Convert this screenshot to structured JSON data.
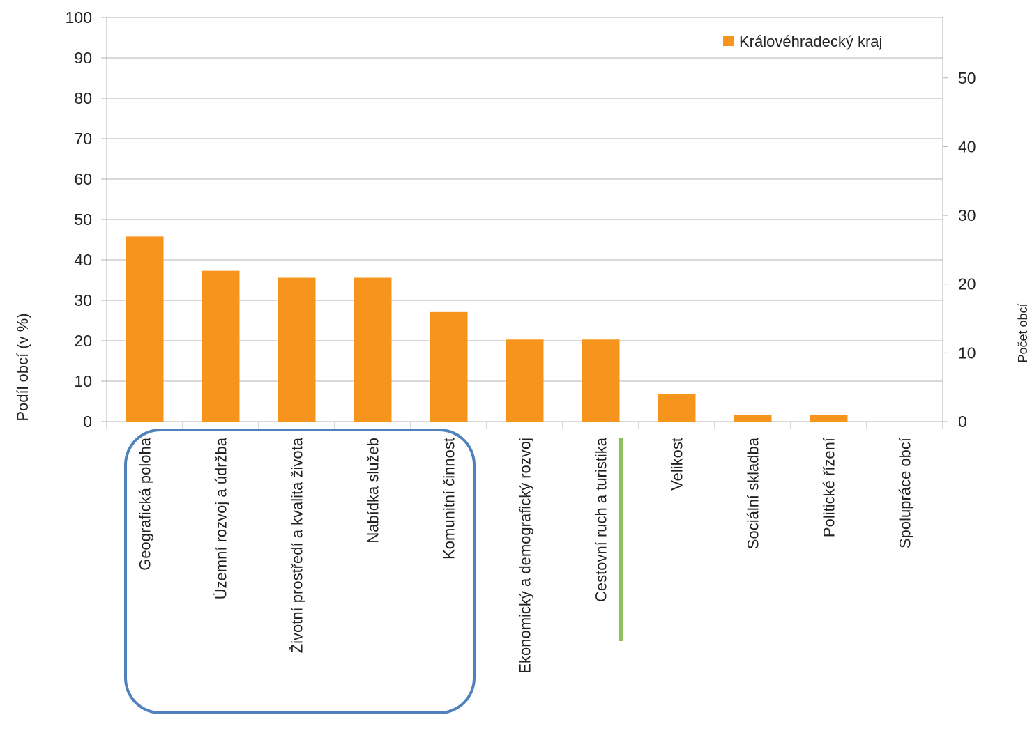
{
  "chart_data": {
    "type": "bar",
    "title": "",
    "xlabel": "",
    "ylabel": "Podíl obcí (v %)",
    "y2label": "Počet obcí",
    "ylim": [
      0,
      100
    ],
    "y2lim": [
      0,
      58.8
    ],
    "yticks": [
      "0",
      "10",
      "20",
      "30",
      "40",
      "50",
      "60",
      "70",
      "80",
      "90",
      "100"
    ],
    "y2ticks": [
      "0",
      "10",
      "20",
      "30",
      "40",
      "50"
    ],
    "grid": true,
    "legend_position": "top-right",
    "categories": [
      "Geografická poloha",
      "Územní rozvoj a údržba",
      "Životní prostředí a kvalita života",
      "Nabídka služeb",
      "Komunitní činnost",
      "Ekonomický a demografický rozvoj",
      "Cestovní ruch a turistika",
      "Velikost",
      "Sociální skladba",
      "Politické řízení",
      "Spolupráce obcí"
    ],
    "series": [
      {
        "name": "Královéhradecký kraj",
        "color": "#f7941d",
        "values": [
          45.8,
          37.3,
          35.6,
          35.6,
          27.1,
          20.3,
          20.3,
          6.8,
          1.7,
          1.7,
          0
        ]
      }
    ],
    "annotations": {
      "highlight_box_color": "#4f81bd",
      "highlight_box_categories": [
        0,
        4
      ],
      "highlight_line_color": "#8dc05a",
      "highlight_line_category": 6
    }
  }
}
